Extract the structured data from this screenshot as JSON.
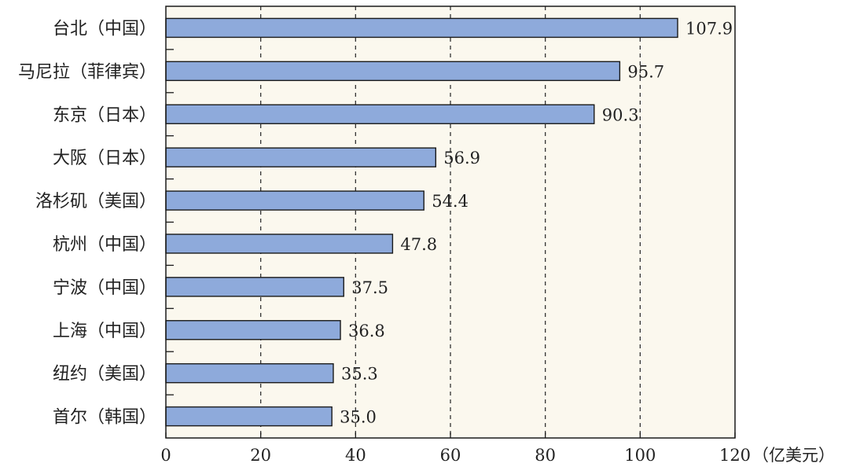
{
  "chart_data": {
    "type": "bar",
    "orientation": "horizontal",
    "categories": [
      "台北（中国）",
      "马尼拉（菲律宾）",
      "东京（日本）",
      "大阪（日本）",
      "洛杉矶（美国）",
      "杭州（中国）",
      "宁波（中国）",
      "上海（中国）",
      "纽约（美国）",
      "首尔（韩国）"
    ],
    "values": [
      107.9,
      95.7,
      90.3,
      56.9,
      54.4,
      47.8,
      37.5,
      36.8,
      35.3,
      35.0
    ],
    "value_labels": [
      "107.9",
      "95.7",
      "90.3",
      "56.9",
      "54.4",
      "47.8",
      "37.5",
      "36.8",
      "35.3",
      "35.0"
    ],
    "xlim": [
      0,
      120
    ],
    "xticks": [
      0,
      20,
      40,
      60,
      80,
      100,
      120
    ],
    "xunit": "（亿美元）",
    "grid": "vertical dashed",
    "bar_color": "#8eaadb",
    "bar_stroke": "#1a1a1a",
    "plot_background": "#fbf8ee"
  }
}
